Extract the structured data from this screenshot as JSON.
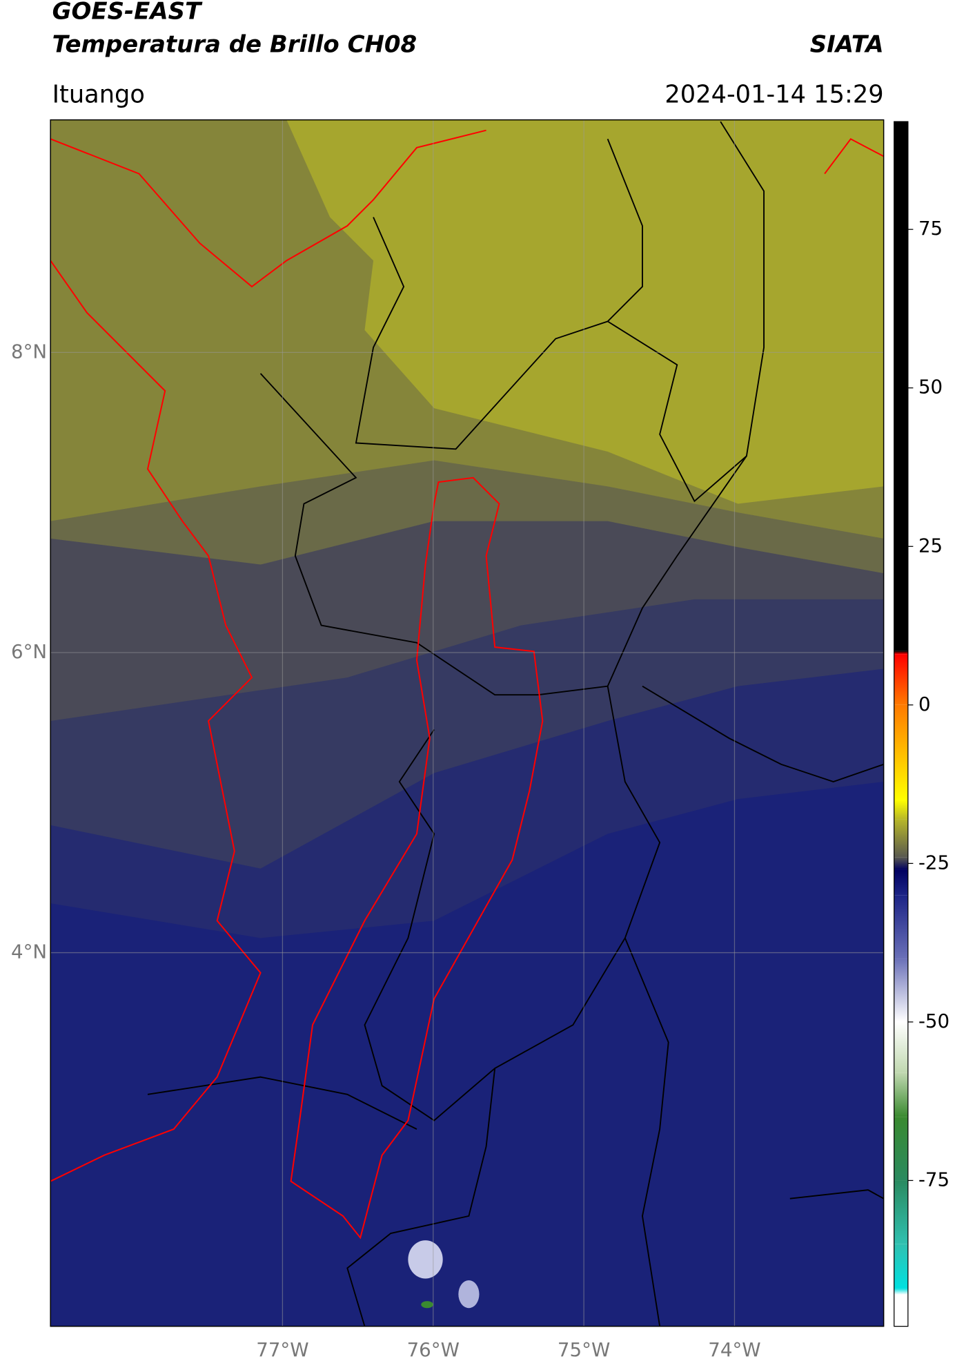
{
  "header": {
    "title_line1": "GOES-EAST",
    "title_line2": "Temperatura de Brillo CH08",
    "org": "SIATA",
    "region": "Ituango",
    "timestamp": "2024-01-14 15:29"
  },
  "map": {
    "lon_range": [
      -78.54,
      -73.01
    ],
    "lat_range": [
      1.51,
      9.55
    ],
    "lon_ticks": [
      {
        "value": -77,
        "label": "77°W"
      },
      {
        "value": -76,
        "label": "76°W"
      },
      {
        "value": -75,
        "label": "75°W"
      },
      {
        "value": -74,
        "label": "74°W"
      }
    ],
    "lat_ticks": [
      {
        "value": 8,
        "label": "8°N"
      },
      {
        "value": 6,
        "label": "6°N"
      },
      {
        "value": 4,
        "label": "4°N"
      }
    ]
  },
  "colorbar": {
    "range": [
      -98,
      92
    ],
    "ticks": [
      75,
      50,
      25,
      0,
      -25,
      -50,
      -75
    ],
    "stops": [
      {
        "value": 92,
        "color": "#000000"
      },
      {
        "value": 8.5,
        "color": "#000000"
      },
      {
        "value": 8,
        "color": "#ff0000"
      },
      {
        "value": 0,
        "color": "#ff7a00"
      },
      {
        "value": -15,
        "color": "#ffff00"
      },
      {
        "value": -18,
        "color": "#b8b828"
      },
      {
        "value": -24,
        "color": "#5a5a50"
      },
      {
        "value": -26,
        "color": "#000060"
      },
      {
        "value": -30,
        "color": "#1c2486"
      },
      {
        "value": -40,
        "color": "#6a70b8"
      },
      {
        "value": -50,
        "color": "#ffffff"
      },
      {
        "value": -58,
        "color": "#c0d8b0"
      },
      {
        "value": -65,
        "color": "#3a8a30"
      },
      {
        "value": -75,
        "color": "#2a8a60"
      },
      {
        "value": -85,
        "color": "#30c0b0"
      },
      {
        "value": -92,
        "color": "#00e0e0"
      },
      {
        "value": -93,
        "color": "#ffffff"
      },
      {
        "value": -98,
        "color": "#ffffff"
      }
    ]
  }
}
